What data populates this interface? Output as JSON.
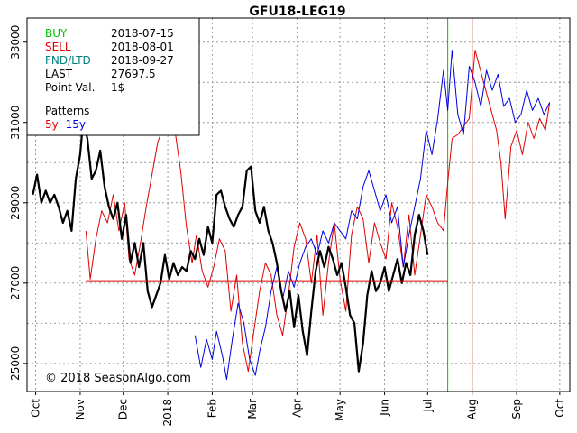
{
  "chart_data": {
    "type": "line",
    "title": "GFU18-LEG19",
    "copyright": "© 2018 SeasonAlgo.com",
    "info": {
      "rows": [
        {
          "label": "BUY",
          "value": "2018-07-15",
          "color": "#00c000"
        },
        {
          "label": "SELL",
          "value": "2018-08-01",
          "color": "#e00000"
        },
        {
          "label": "FND/LTD",
          "value": "2018-09-27",
          "color": "#008080"
        },
        {
          "label": "LAST",
          "value": "27697.5",
          "color": "#000000"
        },
        {
          "label": "Point Val.",
          "value": "1$",
          "color": "#000000"
        }
      ],
      "patterns_label": "Patterns",
      "patterns": [
        {
          "label": "5y",
          "color": "#e00000"
        },
        {
          "label": "15y",
          "color": "#0000e0"
        }
      ]
    },
    "x_axis": {
      "range": [
        "2017-09-25",
        "2018-10-08"
      ],
      "ticks": [
        {
          "label": "Oct",
          "date": "2017-10-01"
        },
        {
          "label": "Nov",
          "date": "2017-11-01"
        },
        {
          "label": "Dec",
          "date": "2017-12-01"
        },
        {
          "label": "2018",
          "date": "2018-01-01"
        },
        {
          "label": "Feb",
          "date": "2018-02-01"
        },
        {
          "label": "Mar",
          "date": "2018-03-01"
        },
        {
          "label": "Apr",
          "date": "2018-04-01"
        },
        {
          "label": "May",
          "date": "2018-05-01"
        },
        {
          "label": "Jun",
          "date": "2018-06-01"
        },
        {
          "label": "Jul",
          "date": "2018-07-01"
        },
        {
          "label": "Aug",
          "date": "2018-08-01"
        },
        {
          "label": "Sep",
          "date": "2018-09-01"
        },
        {
          "label": "Oct",
          "date": "2018-10-01"
        }
      ]
    },
    "y_axis": {
      "range": [
        24300,
        33600
      ],
      "ticks": [
        25000,
        27000,
        29000,
        31000,
        33000
      ],
      "minor_grid": [
        26000,
        28000,
        30000,
        32000
      ]
    },
    "grid": true,
    "vertical_markers": [
      {
        "name": "buy",
        "date": "2018-07-15",
        "color": "#00c000"
      },
      {
        "name": "sell",
        "date": "2018-08-01",
        "color": "#e00000"
      },
      {
        "name": "fnd",
        "date": "2018-09-27",
        "color": "#008080"
      }
    ],
    "horizontal_reference": {
      "value": 27050,
      "from": "2017-11-05",
      "to": "2018-07-15",
      "color": "#e00000"
    },
    "series": [
      {
        "name": "5y",
        "color": "#e00000",
        "points": [
          [
            "2017-11-05",
            28300
          ],
          [
            "2017-11-08",
            27100
          ],
          [
            "2017-11-12",
            28100
          ],
          [
            "2017-11-16",
            28800
          ],
          [
            "2017-11-20",
            28500
          ],
          [
            "2017-11-24",
            29200
          ],
          [
            "2017-11-28",
            28300
          ],
          [
            "2017-12-02",
            29000
          ],
          [
            "2017-12-05",
            27600
          ],
          [
            "2017-12-09",
            27200
          ],
          [
            "2017-12-13",
            28000
          ],
          [
            "2017-12-17",
            28900
          ],
          [
            "2017-12-21",
            29700
          ],
          [
            "2017-12-25",
            30500
          ],
          [
            "2017-12-29",
            30900
          ],
          [
            "2018-01-03",
            31500
          ],
          [
            "2018-01-06",
            30800
          ],
          [
            "2018-01-10",
            29800
          ],
          [
            "2018-01-14",
            28400
          ],
          [
            "2018-01-18",
            27500
          ],
          [
            "2018-01-21",
            28200
          ],
          [
            "2018-01-25",
            27300
          ],
          [
            "2018-01-29",
            26900
          ],
          [
            "2018-02-02",
            27400
          ],
          [
            "2018-02-06",
            28100
          ],
          [
            "2018-02-10",
            27800
          ],
          [
            "2018-02-14",
            26300
          ],
          [
            "2018-02-18",
            27200
          ],
          [
            "2018-02-22",
            25500
          ],
          [
            "2018-02-26",
            24800
          ],
          [
            "2018-03-02",
            25800
          ],
          [
            "2018-03-06",
            26800
          ],
          [
            "2018-03-10",
            27500
          ],
          [
            "2018-03-14",
            27200
          ],
          [
            "2018-03-18",
            26200
          ],
          [
            "2018-03-22",
            25700
          ],
          [
            "2018-03-26",
            26700
          ],
          [
            "2018-03-30",
            27900
          ],
          [
            "2018-04-03",
            28500
          ],
          [
            "2018-04-07",
            28100
          ],
          [
            "2018-04-11",
            27000
          ],
          [
            "2018-04-15",
            28200
          ],
          [
            "2018-04-19",
            26200
          ],
          [
            "2018-04-23",
            27500
          ],
          [
            "2018-04-27",
            28500
          ],
          [
            "2018-05-01",
            27100
          ],
          [
            "2018-05-05",
            26300
          ],
          [
            "2018-05-09",
            28200
          ],
          [
            "2018-05-13",
            28900
          ],
          [
            "2018-05-17",
            28600
          ],
          [
            "2018-05-21",
            27500
          ],
          [
            "2018-05-25",
            28500
          ],
          [
            "2018-05-29",
            28000
          ],
          [
            "2018-06-02",
            27600
          ],
          [
            "2018-06-06",
            29000
          ],
          [
            "2018-06-10",
            28400
          ],
          [
            "2018-06-14",
            27400
          ],
          [
            "2018-06-18",
            28700
          ],
          [
            "2018-06-22",
            27200
          ],
          [
            "2018-06-26",
            28200
          ],
          [
            "2018-06-30",
            29200
          ],
          [
            "2018-07-04",
            28900
          ],
          [
            "2018-07-08",
            28500
          ],
          [
            "2018-07-12",
            28300
          ],
          [
            "2018-07-15",
            29500
          ],
          [
            "2018-07-18",
            30600
          ],
          [
            "2018-07-22",
            30700
          ],
          [
            "2018-07-26",
            30900
          ],
          [
            "2018-07-30",
            31100
          ],
          [
            "2018-08-03",
            32800
          ],
          [
            "2018-08-06",
            32400
          ],
          [
            "2018-08-09",
            32000
          ],
          [
            "2018-08-12",
            31600
          ],
          [
            "2018-08-15",
            31200
          ],
          [
            "2018-08-18",
            30800
          ],
          [
            "2018-08-21",
            30000
          ],
          [
            "2018-08-24",
            28600
          ],
          [
            "2018-08-28",
            30400
          ],
          [
            "2018-09-01",
            30800
          ],
          [
            "2018-09-05",
            30200
          ],
          [
            "2018-09-09",
            31000
          ],
          [
            "2018-09-13",
            30600
          ],
          [
            "2018-09-17",
            31100
          ],
          [
            "2018-09-21",
            30800
          ],
          [
            "2018-09-24",
            31500
          ]
        ]
      },
      {
        "name": "15y",
        "color": "#0000e0",
        "points": [
          [
            "2018-01-20",
            25700
          ],
          [
            "2018-01-24",
            24900
          ],
          [
            "2018-01-28",
            25600
          ],
          [
            "2018-02-01",
            25100
          ],
          [
            "2018-02-04",
            25800
          ],
          [
            "2018-02-08",
            25200
          ],
          [
            "2018-02-11",
            24600
          ],
          [
            "2018-02-15",
            25600
          ],
          [
            "2018-02-19",
            26500
          ],
          [
            "2018-02-23",
            26000
          ],
          [
            "2018-02-27",
            25100
          ],
          [
            "2018-03-03",
            24700
          ],
          [
            "2018-03-06",
            25300
          ],
          [
            "2018-03-10",
            25900
          ],
          [
            "2018-03-14",
            26800
          ],
          [
            "2018-03-18",
            27400
          ],
          [
            "2018-03-22",
            26600
          ],
          [
            "2018-03-26",
            27300
          ],
          [
            "2018-03-30",
            26900
          ],
          [
            "2018-04-03",
            27500
          ],
          [
            "2018-04-07",
            27900
          ],
          [
            "2018-04-11",
            28100
          ],
          [
            "2018-04-15",
            27700
          ],
          [
            "2018-04-19",
            28300
          ],
          [
            "2018-04-23",
            28000
          ],
          [
            "2018-04-27",
            28500
          ],
          [
            "2018-05-01",
            28300
          ],
          [
            "2018-05-05",
            28100
          ],
          [
            "2018-05-09",
            28800
          ],
          [
            "2018-05-13",
            28600
          ],
          [
            "2018-05-17",
            29400
          ],
          [
            "2018-05-21",
            29800
          ],
          [
            "2018-05-25",
            29300
          ],
          [
            "2018-05-29",
            28800
          ],
          [
            "2018-06-02",
            29200
          ],
          [
            "2018-06-06",
            28500
          ],
          [
            "2018-06-10",
            28900
          ],
          [
            "2018-06-14",
            27400
          ],
          [
            "2018-06-18",
            28200
          ],
          [
            "2018-06-22",
            28900
          ],
          [
            "2018-06-26",
            29600
          ],
          [
            "2018-06-30",
            30800
          ],
          [
            "2018-07-04",
            30200
          ],
          [
            "2018-07-08",
            31100
          ],
          [
            "2018-07-12",
            32300
          ],
          [
            "2018-07-15",
            31300
          ],
          [
            "2018-07-18",
            32800
          ],
          [
            "2018-07-22",
            31200
          ],
          [
            "2018-07-26",
            30700
          ],
          [
            "2018-07-30",
            32400
          ],
          [
            "2018-08-03",
            32000
          ],
          [
            "2018-08-07",
            31400
          ],
          [
            "2018-08-11",
            32300
          ],
          [
            "2018-08-15",
            31800
          ],
          [
            "2018-08-19",
            32200
          ],
          [
            "2018-08-23",
            31400
          ],
          [
            "2018-08-27",
            31600
          ],
          [
            "2018-08-31",
            31000
          ],
          [
            "2018-09-04",
            31200
          ],
          [
            "2018-09-08",
            31800
          ],
          [
            "2018-09-12",
            31300
          ],
          [
            "2018-09-16",
            31600
          ],
          [
            "2018-09-20",
            31200
          ],
          [
            "2018-09-24",
            31500
          ]
        ]
      },
      {
        "name": "GFU18-LEG19",
        "color": "#000000",
        "points": [
          [
            "2017-09-29",
            29200
          ],
          [
            "2017-10-02",
            29700
          ],
          [
            "2017-10-05",
            29000
          ],
          [
            "2017-10-08",
            29300
          ],
          [
            "2017-10-11",
            29000
          ],
          [
            "2017-10-14",
            29200
          ],
          [
            "2017-10-17",
            28900
          ],
          [
            "2017-10-20",
            28500
          ],
          [
            "2017-10-23",
            28800
          ],
          [
            "2017-10-26",
            28300
          ],
          [
            "2017-10-29",
            29600
          ],
          [
            "2017-11-01",
            30200
          ],
          [
            "2017-11-03",
            31000
          ],
          [
            "2017-11-06",
            30600
          ],
          [
            "2017-11-09",
            29600
          ],
          [
            "2017-11-12",
            29800
          ],
          [
            "2017-11-15",
            30300
          ],
          [
            "2017-11-18",
            29400
          ],
          [
            "2017-11-21",
            28900
          ],
          [
            "2017-11-24",
            28600
          ],
          [
            "2017-11-27",
            29000
          ],
          [
            "2017-11-30",
            28100
          ],
          [
            "2017-12-03",
            28700
          ],
          [
            "2017-12-06",
            27500
          ],
          [
            "2017-12-09",
            28000
          ],
          [
            "2017-12-12",
            27400
          ],
          [
            "2017-12-15",
            28000
          ],
          [
            "2017-12-18",
            26800
          ],
          [
            "2017-12-21",
            26400
          ],
          [
            "2017-12-24",
            26700
          ],
          [
            "2017-12-27",
            27000
          ],
          [
            "2017-12-30",
            27700
          ],
          [
            "2018-01-02",
            27100
          ],
          [
            "2018-01-05",
            27500
          ],
          [
            "2018-01-08",
            27200
          ],
          [
            "2018-01-11",
            27400
          ],
          [
            "2018-01-14",
            27300
          ],
          [
            "2018-01-17",
            27800
          ],
          [
            "2018-01-20",
            27600
          ],
          [
            "2018-01-23",
            28100
          ],
          [
            "2018-01-26",
            27700
          ],
          [
            "2018-01-29",
            28400
          ],
          [
            "2018-02-01",
            28000
          ],
          [
            "2018-02-04",
            29200
          ],
          [
            "2018-02-07",
            29300
          ],
          [
            "2018-02-10",
            28900
          ],
          [
            "2018-02-13",
            28600
          ],
          [
            "2018-02-16",
            28400
          ],
          [
            "2018-02-19",
            28700
          ],
          [
            "2018-02-22",
            28900
          ],
          [
            "2018-02-25",
            29800
          ],
          [
            "2018-02-28",
            29900
          ],
          [
            "2018-03-03",
            28800
          ],
          [
            "2018-03-06",
            28500
          ],
          [
            "2018-03-09",
            28900
          ],
          [
            "2018-03-12",
            28300
          ],
          [
            "2018-03-15",
            28000
          ],
          [
            "2018-03-18",
            27500
          ],
          [
            "2018-03-21",
            26800
          ],
          [
            "2018-03-24",
            26300
          ],
          [
            "2018-03-27",
            26800
          ],
          [
            "2018-03-30",
            25900
          ],
          [
            "2018-04-02",
            26700
          ],
          [
            "2018-04-05",
            25800
          ],
          [
            "2018-04-08",
            25200
          ],
          [
            "2018-04-11",
            26300
          ],
          [
            "2018-04-14",
            27300
          ],
          [
            "2018-04-17",
            27800
          ],
          [
            "2018-04-20",
            27400
          ],
          [
            "2018-04-23",
            27900
          ],
          [
            "2018-04-26",
            27600
          ],
          [
            "2018-04-29",
            27200
          ],
          [
            "2018-05-02",
            27500
          ],
          [
            "2018-05-05",
            26900
          ],
          [
            "2018-05-08",
            26200
          ],
          [
            "2018-05-11",
            26000
          ],
          [
            "2018-05-14",
            24800
          ],
          [
            "2018-05-17",
            25500
          ],
          [
            "2018-05-20",
            26700
          ],
          [
            "2018-05-23",
            27300
          ],
          [
            "2018-05-26",
            26800
          ],
          [
            "2018-05-29",
            27000
          ],
          [
            "2018-06-01",
            27400
          ],
          [
            "2018-06-04",
            26800
          ],
          [
            "2018-06-07",
            27200
          ],
          [
            "2018-06-10",
            27600
          ],
          [
            "2018-06-13",
            27000
          ],
          [
            "2018-06-16",
            27500
          ],
          [
            "2018-06-19",
            27200
          ],
          [
            "2018-06-22",
            28200
          ],
          [
            "2018-06-25",
            28700
          ],
          [
            "2018-06-28",
            28300
          ],
          [
            "2018-07-01",
            27698
          ]
        ]
      }
    ]
  }
}
